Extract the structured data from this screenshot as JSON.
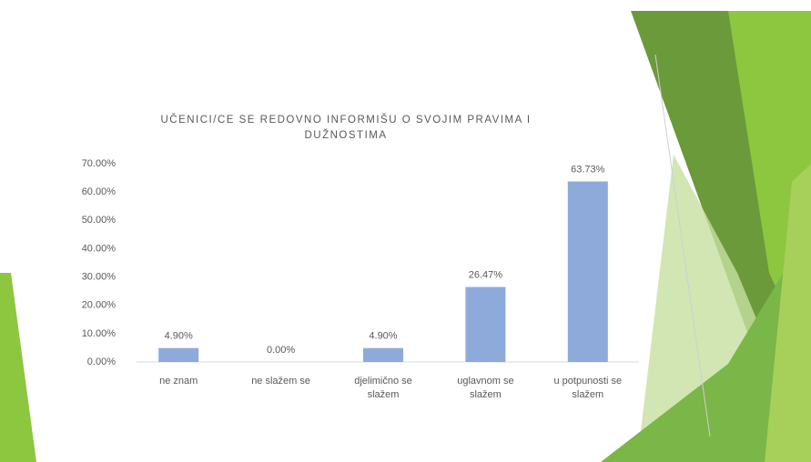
{
  "chart_data": {
    "type": "bar",
    "title": "UČENICI/CE SE REDOVNO INFORMIŠU O SVOJIM PRAVIMA I DUŽNOSTIMA",
    "categories": [
      "ne znam",
      "ne slažem se",
      "djelimično se slažem",
      "uglavnom se slažem",
      "u potpunosti se slažem"
    ],
    "values": [
      4.9,
      0.0,
      4.9,
      26.47,
      63.73
    ],
    "value_labels": [
      "4.90%",
      "0.00%",
      "4.90%",
      "26.47%",
      "63.73%"
    ],
    "color": "#8eaadb",
    "ylim": [
      0,
      70
    ],
    "yticks": [
      {
        "value": 0,
        "label": "0.00%"
      },
      {
        "value": 10,
        "label": "10.00%"
      },
      {
        "value": 20,
        "label": "20.00%"
      },
      {
        "value": 30,
        "label": "30.00%"
      },
      {
        "value": 40,
        "label": "40.00%"
      },
      {
        "value": 50,
        "label": "50.00%"
      },
      {
        "value": 60,
        "label": "60.00%"
      },
      {
        "value": 70,
        "label": "70.00%"
      }
    ],
    "grid": false
  }
}
